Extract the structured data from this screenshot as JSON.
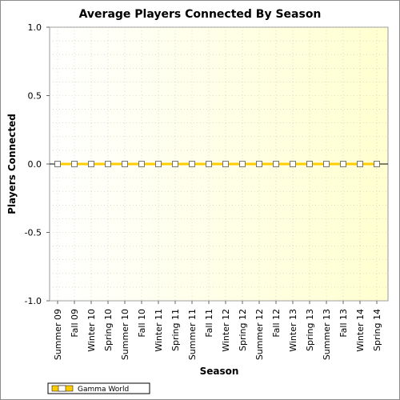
{
  "chart_data": {
    "type": "line",
    "title": "Average Players Connected By Season",
    "xlabel": "Season",
    "ylabel": "Players Connected",
    "ylim": [
      -1.0,
      1.0
    ],
    "yticks": [
      "1.0",
      "0.5",
      "0.0",
      "-0.5",
      "-1.0"
    ],
    "ytick_values": [
      1.0,
      0.5,
      0.0,
      -0.5,
      -1.0
    ],
    "categories": [
      "Summer 09",
      "Fall 09",
      "Winter 10",
      "Spring 10",
      "Summer 10",
      "Fall 10",
      "Winter 11",
      "Spring 11",
      "Summer 11",
      "Fall 11",
      "Winter 12",
      "Spring 12",
      "Summer 12",
      "Fall 12",
      "Winter 13",
      "Spring 13",
      "Summer 13",
      "Fall 13",
      "Winter 14",
      "Spring 14"
    ],
    "series": [
      {
        "name": "Gamma World",
        "values": [
          0,
          0,
          0,
          0,
          0,
          0,
          0,
          0,
          0,
          0,
          0,
          0,
          0,
          0,
          0,
          0,
          0,
          0,
          0,
          0
        ],
        "color": "#ffcc00"
      }
    ],
    "grid": true,
    "legend": "bottom-left",
    "background_gradient": [
      "#ffffff",
      "#ffffd0"
    ]
  }
}
